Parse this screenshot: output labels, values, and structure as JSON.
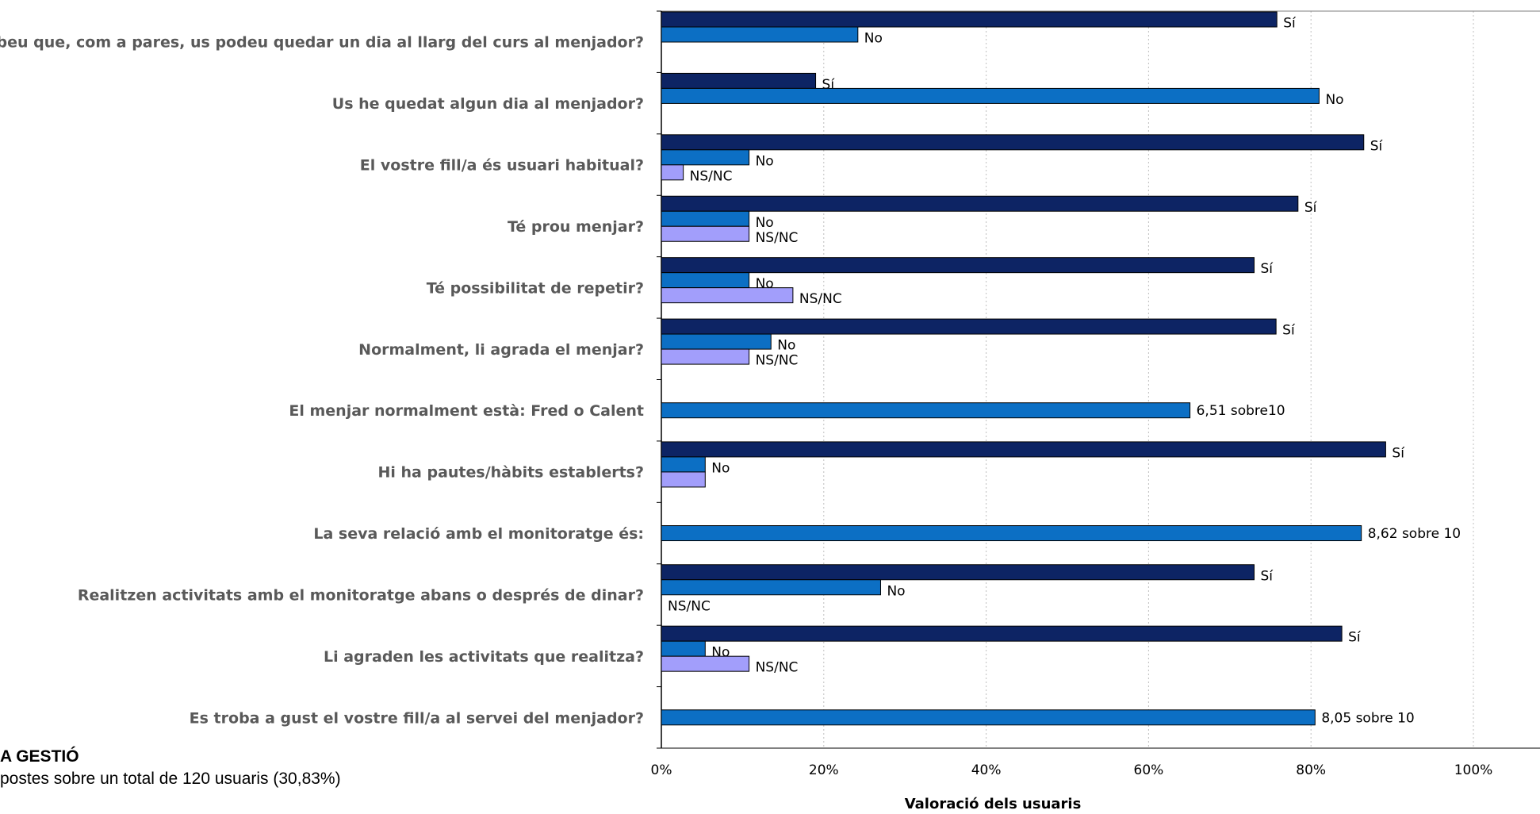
{
  "chart_data": {
    "type": "bar",
    "orientation": "horizontal",
    "xlabel": "Valoració dels usuaris",
    "xlim": [
      0,
      1
    ],
    "x_ticks": [
      "0%",
      "20%",
      "40%",
      "60%",
      "80%",
      "100%"
    ],
    "grid": "vertical-dotted",
    "series_colors": {
      "Sí": "#0d2464",
      "No": "#0c6fc4",
      "NS/NC": "#a29efb"
    },
    "categories": [
      {
        "label": "Sabeu que, com a pares, us podeu quedar un dia al llarg del curs al menjador?",
        "bars": [
          {
            "series": "Sí",
            "value": 0.758,
            "label": "Sí"
          },
          {
            "series": "No",
            "value": 0.242,
            "label": "No"
          }
        ]
      },
      {
        "label": "Us he quedat algun dia al menjador?",
        "bars": [
          {
            "series": "Sí",
            "value": 0.19,
            "label": "Sí"
          },
          {
            "series": "No",
            "value": 0.81,
            "label": "No"
          }
        ]
      },
      {
        "label": "El vostre fill/a és usuari habitual?",
        "bars": [
          {
            "series": "Sí",
            "value": 0.865,
            "label": "Sí"
          },
          {
            "series": "No",
            "value": 0.108,
            "label": "No"
          },
          {
            "series": "NS/NC",
            "value": 0.027,
            "label": "NS/NC"
          }
        ]
      },
      {
        "label": "Té prou menjar?",
        "bars": [
          {
            "series": "Sí",
            "value": 0.784,
            "label": "Sí"
          },
          {
            "series": "No",
            "value": 0.108,
            "label": "No"
          },
          {
            "series": "NS/NC",
            "value": 0.108,
            "label": "NS/NC"
          }
        ]
      },
      {
        "label": "Té possibilitat de repetir?",
        "bars": [
          {
            "series": "Sí",
            "value": 0.73,
            "label": "Sí"
          },
          {
            "series": "No",
            "value": 0.108,
            "label": "No"
          },
          {
            "series": "NS/NC",
            "value": 0.162,
            "label": "NS/NC"
          }
        ]
      },
      {
        "label": "Normalment, li agrada el menjar?",
        "bars": [
          {
            "series": "Sí",
            "value": 0.757,
            "label": "Sí"
          },
          {
            "series": "No",
            "value": 0.135,
            "label": "No"
          },
          {
            "series": "NS/NC",
            "value": 0.108,
            "label": "NS/NC"
          }
        ]
      },
      {
        "label": "El menjar normalment està: Fred o Calent",
        "bars": [
          {
            "series": "No",
            "value": 0.651,
            "label": "6,51 sobre10"
          }
        ]
      },
      {
        "label": "Hi ha pautes/hàbits establerts?",
        "bars": [
          {
            "series": "Sí",
            "value": 0.892,
            "label": "Sí"
          },
          {
            "series": "No",
            "value": 0.054,
            "label": "No"
          },
          {
            "series": "NS/NC",
            "value": 0.054,
            "label": ""
          }
        ]
      },
      {
        "label": "La seva relació amb el monitoratge és:",
        "bars": [
          {
            "series": "No",
            "value": 0.862,
            "label": "8,62 sobre 10"
          }
        ]
      },
      {
        "label": "Realitzen activitats amb el monitoratge abans o després de dinar?",
        "bars": [
          {
            "series": "Sí",
            "value": 0.73,
            "label": "Sí"
          },
          {
            "series": "No",
            "value": 0.27,
            "label": "No"
          },
          {
            "series": "NS/NC",
            "value": 0,
            "label": "NS/NC"
          }
        ]
      },
      {
        "label": "Li agraden les activitats que realitza?",
        "bars": [
          {
            "series": "Sí",
            "value": 0.838,
            "label": "Sí"
          },
          {
            "series": "No",
            "value": 0.054,
            "label": "No"
          },
          {
            "series": "NS/NC",
            "value": 0.108,
            "label": "NS/NC"
          }
        ]
      },
      {
        "label": "Es troba a gust el vostre fill/a al servei del menjador?",
        "bars": [
          {
            "series": "No",
            "value": 0.805,
            "label": "8,05 sobre 10"
          }
        ]
      }
    ]
  },
  "footer": {
    "title": "A GESTIÓ",
    "subtitle": "postes sobre un total de 120 usuaris (30,83%)"
  }
}
